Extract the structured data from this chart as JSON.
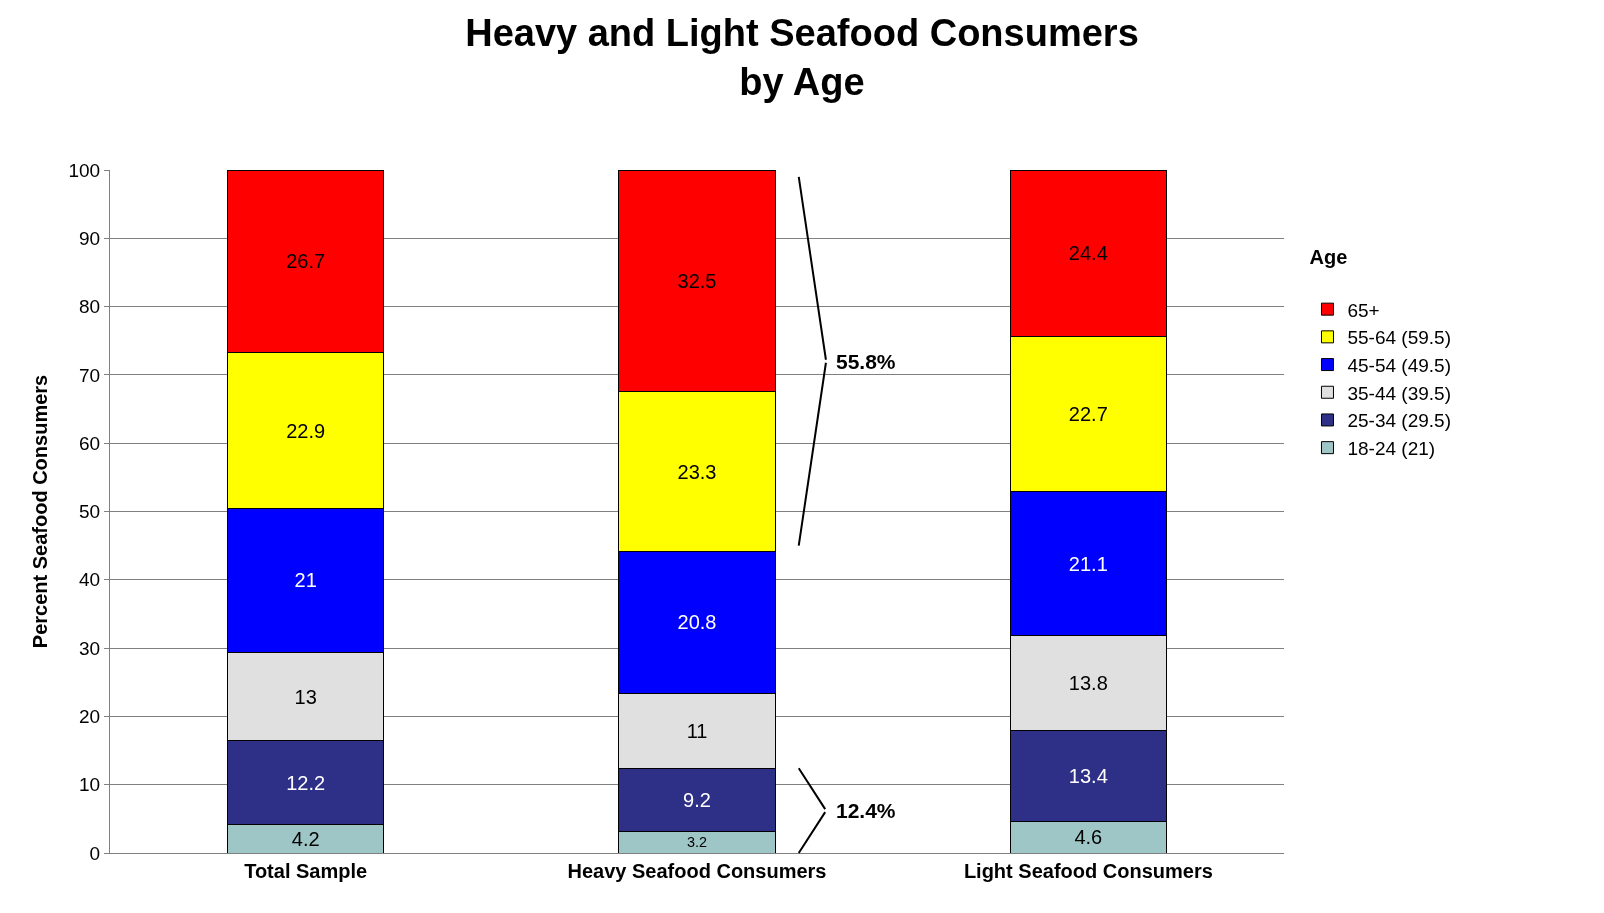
{
  "chart_data": {
    "type": "bar",
    "stacked": true,
    "title": "Heavy and Light Seafood Consumers\nby Age",
    "ylabel": "Percent Seafood Consumers",
    "legend_title": "Age",
    "legend": "right",
    "categories": [
      "Total Sample",
      "Heavy Seafood Consumers",
      "Light Seafood Consumers"
    ],
    "series": [
      {
        "name": "18-24 (21)",
        "color": "#9fc6c6",
        "values": [
          4.2,
          3.2,
          4.6
        ]
      },
      {
        "name": "25-34 (29.5)",
        "color": "#2e3088",
        "values": [
          12.2,
          9.2,
          13.4
        ]
      },
      {
        "name": "35-44 (39.5)",
        "color": "#e0e0e0",
        "values": [
          13,
          11,
          13.8
        ]
      },
      {
        "name": "45-54 (49.5)",
        "color": "#0000ff",
        "values": [
          21,
          20.8,
          21.1
        ]
      },
      {
        "name": "55-64 (59.5)",
        "color": "#ffff00",
        "values": [
          22.9,
          23.3,
          22.7
        ]
      },
      {
        "name": "65+",
        "color": "#ff0000",
        "values": [
          26.7,
          32.5,
          24.4
        ]
      }
    ],
    "ylim": [
      0,
      100
    ],
    "yticks": [
      0,
      10,
      20,
      30,
      40,
      50,
      60,
      70,
      80,
      90,
      100
    ],
    "grid": "y",
    "data_labels": true,
    "annotations": [
      "55.8%",
      "12.4%"
    ]
  }
}
